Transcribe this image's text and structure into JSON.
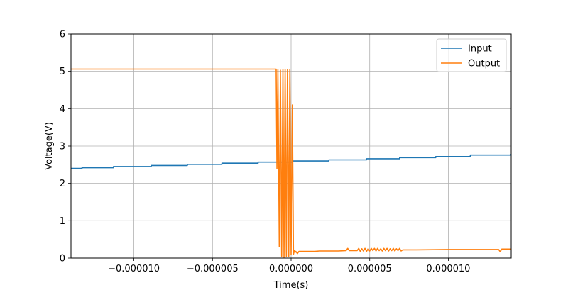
{
  "chart_data": {
    "type": "line",
    "xlabel": "Time(s)",
    "ylabel": "Voltage(V)",
    "xlim": [
      -1.4e-05,
      1.4e-05
    ],
    "ylim": [
      0,
      6
    ],
    "grid": true,
    "legend_position": "top-right",
    "x_ticks": [
      {
        "value": -1e-05,
        "label": "−0.000010"
      },
      {
        "value": -5e-06,
        "label": "−0.000005"
      },
      {
        "value": 0,
        "label": "0.000000"
      },
      {
        "value": 5e-06,
        "label": "0.000005"
      },
      {
        "value": 1e-05,
        "label": "0.000010"
      }
    ],
    "y_ticks": [
      {
        "value": 0,
        "label": "0"
      },
      {
        "value": 1,
        "label": "1"
      },
      {
        "value": 2,
        "label": "2"
      },
      {
        "value": 3,
        "label": "3"
      },
      {
        "value": 4,
        "label": "4"
      },
      {
        "value": 5,
        "label": "5"
      },
      {
        "value": 6,
        "label": "6"
      }
    ],
    "series": [
      {
        "name": "Input",
        "color": "#1f77b4",
        "step": true,
        "x": [
          -1.4e-05,
          -1.33e-05,
          -1.13e-05,
          -8.9e-06,
          -6.6e-06,
          -4.4e-06,
          -2.1e-06,
          1e-07,
          2.4e-06,
          4.8e-06,
          6.9e-06,
          9.2e-06,
          1.14e-05,
          1.4e-05
        ],
        "y": [
          2.4,
          2.42,
          2.45,
          2.48,
          2.51,
          2.54,
          2.57,
          2.6,
          2.63,
          2.66,
          2.69,
          2.72,
          2.76,
          2.79
        ]
      },
      {
        "name": "Output",
        "color": "#ff7f0e",
        "step": false,
        "x": [
          -1.4e-05,
          -9.5e-07,
          -9e-07,
          -8.4e-07,
          -7.5e-07,
          -6.8e-07,
          -6e-07,
          -5.2e-07,
          -4.5e-07,
          -3.8e-07,
          -3e-07,
          -2.3e-07,
          -1.5e-07,
          -8e-08,
          0.0,
          8e-08,
          1.5e-07,
          2e-07,
          2.5e-07,
          3e-07,
          4e-07,
          5e-07,
          6e-07,
          8e-07,
          1.2e-06,
          1.5e-06,
          1.8e-06,
          2e-06,
          3e-06,
          3.5e-06,
          3.6e-06,
          3.7e-06,
          4.2e-06,
          4.3e-06,
          4.4e-06,
          4.5e-06,
          4.6e-06,
          4.7e-06,
          4.8e-06,
          4.9e-06,
          5e-06,
          5.1e-06,
          5.2e-06,
          5.3e-06,
          5.4e-06,
          5.5e-06,
          5.6e-06,
          5.7e-06,
          5.8e-06,
          5.9e-06,
          6e-06,
          6.1e-06,
          6.2e-06,
          6.3e-06,
          6.4e-06,
          6.5e-06,
          6.6e-06,
          6.7e-06,
          6.8e-06,
          6.9e-06,
          7e-06,
          7.1e-06,
          8e-06,
          1e-05,
          1.2e-05,
          1.32e-05,
          1.33e-05,
          1.34e-05,
          1.4e-05
        ],
        "y": [
          5.06,
          5.06,
          2.4,
          5.05,
          0.3,
          5.03,
          0.05,
          5.05,
          0.02,
          5.05,
          0.05,
          5.05,
          0.05,
          5.05,
          0.1,
          4.1,
          0.1,
          0.2,
          0.15,
          0.18,
          0.12,
          0.18,
          0.18,
          0.18,
          0.18,
          0.18,
          0.19,
          0.19,
          0.19,
          0.2,
          0.26,
          0.2,
          0.2,
          0.26,
          0.18,
          0.25,
          0.19,
          0.26,
          0.18,
          0.25,
          0.19,
          0.26,
          0.2,
          0.26,
          0.19,
          0.26,
          0.2,
          0.25,
          0.19,
          0.26,
          0.2,
          0.26,
          0.19,
          0.25,
          0.2,
          0.26,
          0.19,
          0.25,
          0.2,
          0.26,
          0.19,
          0.22,
          0.22,
          0.23,
          0.23,
          0.23,
          0.17,
          0.24,
          0.24
        ]
      }
    ]
  }
}
